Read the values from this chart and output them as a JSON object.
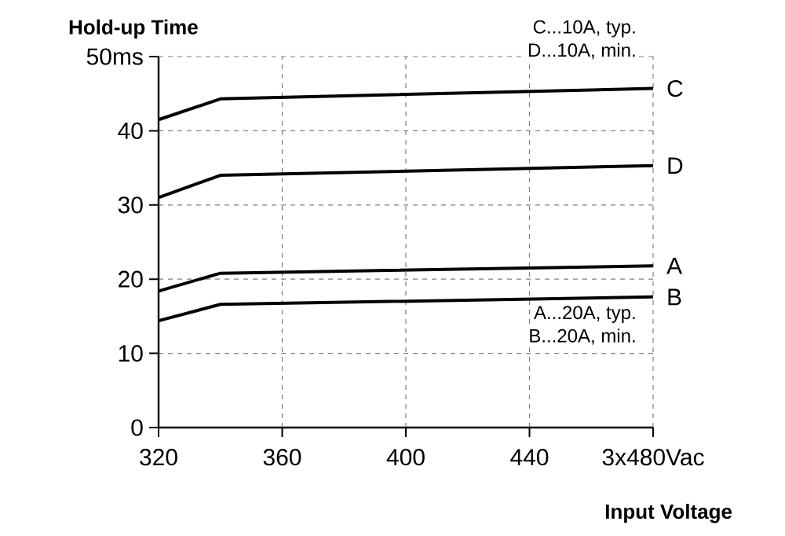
{
  "chart_data": {
    "type": "line",
    "ylabel": "Hold-up Time",
    "xlabel": "Input Voltage",
    "x": [
      320,
      340,
      480
    ],
    "series": [
      {
        "name": "C",
        "color": "#000000",
        "values": [
          41.5,
          44.3,
          45.7
        ]
      },
      {
        "name": "D",
        "color": "#000000",
        "values": [
          31.0,
          34.0,
          35.3
        ]
      },
      {
        "name": "A",
        "color": "#000000",
        "values": [
          18.4,
          20.8,
          21.8
        ]
      },
      {
        "name": "B",
        "color": "#000000",
        "values": [
          14.4,
          16.6,
          17.6
        ]
      }
    ],
    "xlim": [
      320,
      480
    ],
    "ylim": [
      0,
      50
    ],
    "xticks": [
      320,
      360,
      400,
      440,
      {
        "value": 480,
        "label": "3x480Vac"
      }
    ],
    "yticks": [
      0,
      10,
      20,
      30,
      40,
      {
        "value": 50,
        "label": "50ms"
      }
    ],
    "grid": true,
    "legend": false,
    "marker": "none",
    "line_style": "solid",
    "annotations": [
      "C...10A, typ.",
      "D...10A,  min.",
      "A...20A, typ.",
      "B...20A,  min."
    ]
  }
}
